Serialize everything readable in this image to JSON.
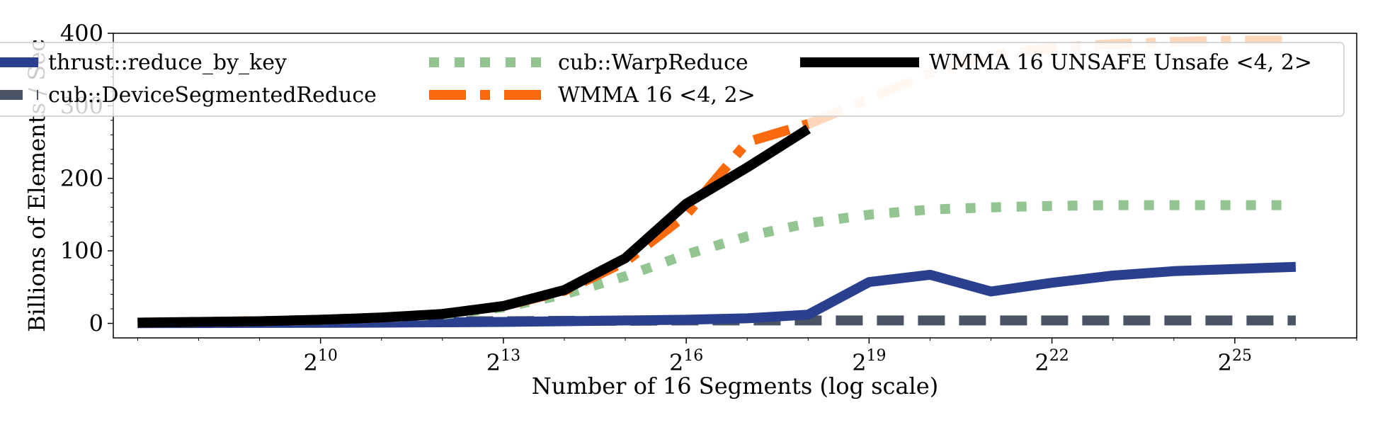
{
  "chart_data": {
    "type": "line",
    "xlabel": "Number of 16 Segments (log scale)",
    "ylabel": "Billions of Elements / Sec",
    "x_scale": "log2",
    "xlim_exponent": [
      6.6,
      27.0
    ],
    "ylim": [
      -20,
      400
    ],
    "x_ticks": [
      {
        "base": "2",
        "exp": "10",
        "value_exp": 10
      },
      {
        "base": "2",
        "exp": "13",
        "value_exp": 13
      },
      {
        "base": "2",
        "exp": "16",
        "value_exp": 16
      },
      {
        "base": "2",
        "exp": "19",
        "value_exp": 19
      },
      {
        "base": "2",
        "exp": "22",
        "value_exp": 22
      },
      {
        "base": "2",
        "exp": "25",
        "value_exp": 25
      }
    ],
    "y_ticks": [
      {
        "label": "0",
        "value": 0
      },
      {
        "label": "100",
        "value": 100
      },
      {
        "label": "200",
        "value": 200
      },
      {
        "label": "300",
        "value": 300
      },
      {
        "label": "400",
        "value": 400
      }
    ],
    "legend_position": "top",
    "series": [
      {
        "name": "thrust::reduce_by_key",
        "color": "#2b3f8f",
        "style": "solid",
        "x_exp": [
          7,
          8,
          9,
          10,
          11,
          12,
          13,
          14,
          15,
          16,
          17,
          18,
          19,
          20,
          21,
          22,
          23,
          24,
          25,
          26
        ],
        "values": [
          0.2,
          0.4,
          0.6,
          0.8,
          1.0,
          1.5,
          2,
          3,
          4,
          5,
          7,
          12,
          57,
          67,
          44,
          56,
          66,
          72,
          75,
          78
        ]
      },
      {
        "name": "cub::DeviceSegmentedReduce",
        "color": "#4a5464",
        "style": "dashed",
        "x_exp": [
          7,
          8,
          9,
          10,
          11,
          12,
          13,
          14,
          15,
          16,
          17,
          18,
          19,
          20,
          21,
          22,
          23,
          24,
          25,
          26
        ],
        "values": [
          0.5,
          1,
          1.5,
          2,
          2.5,
          3,
          3,
          3.5,
          3.5,
          4,
          4,
          4,
          4,
          4,
          4,
          4,
          4,
          4,
          4,
          4
        ]
      },
      {
        "name": "cub::WarpReduce",
        "color": "#93c593",
        "style": "dotted",
        "x_exp": [
          7,
          8,
          9,
          10,
          11,
          12,
          13,
          14,
          15,
          16,
          17,
          18,
          19,
          20,
          21,
          22,
          23,
          24,
          25,
          26
        ],
        "values": [
          1,
          2,
          3,
          5,
          8,
          12,
          22,
          40,
          65,
          95,
          120,
          138,
          150,
          157,
          160,
          162,
          163,
          163,
          163,
          163
        ]
      },
      {
        "name": "WMMA 16 <4, 2>",
        "color": "#f96a0f",
        "style": "dashdot",
        "x_exp": [
          7,
          8,
          9,
          10,
          11,
          12,
          13,
          14,
          15,
          16,
          17,
          18,
          19,
          20,
          21,
          22,
          23,
          24,
          25,
          26
        ],
        "values": [
          1,
          2,
          3,
          5,
          8,
          13,
          24,
          45,
          85,
          150,
          250,
          275,
          310,
          345,
          370,
          380,
          385,
          388,
          390,
          390
        ],
        "faded_from_x_exp": 18
      },
      {
        "name": "WMMA 16 UNSAFE Unsafe <4, 2>",
        "color": "#000000",
        "style": "solid",
        "x_exp": [
          7,
          8,
          9,
          10,
          11,
          12,
          13,
          14,
          15,
          16,
          17,
          18
        ],
        "values": [
          1,
          2,
          3,
          5,
          8,
          13,
          24,
          46,
          90,
          165,
          215,
          268
        ]
      }
    ]
  }
}
